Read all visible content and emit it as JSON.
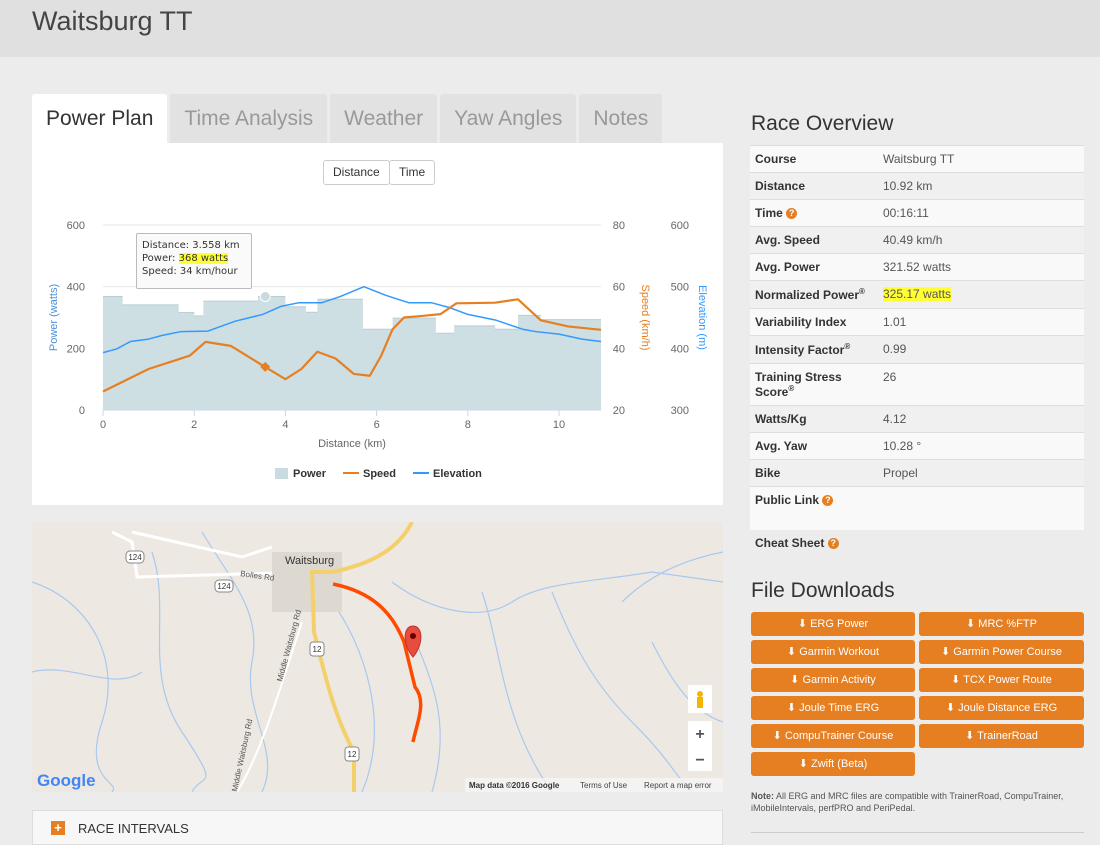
{
  "page_title": "Waitsburg TT",
  "tabs": [
    {
      "label": "Power Plan",
      "active": true
    },
    {
      "label": "Time Analysis"
    },
    {
      "label": "Weather"
    },
    {
      "label": "Yaw Angles"
    },
    {
      "label": "Notes"
    }
  ],
  "chart_toggle": {
    "distance": "Distance",
    "time": "Time"
  },
  "tooltip": {
    "distance": "Distance: 3.558 km",
    "power_label": "Power: ",
    "power_value": "368 watts",
    "speed": "Speed: 34 km/hour"
  },
  "chart_data": {
    "type": "area+line",
    "xlabel": "Distance (km)",
    "xlim": [
      0,
      10.92
    ],
    "x_ticks": [
      "0",
      "2",
      "4",
      "6",
      "8",
      "10"
    ],
    "axes": {
      "power": {
        "label": "Power (watts)",
        "ylim": [
          0,
          600
        ],
        "ticks": [
          "0",
          "200",
          "400",
          "600"
        ],
        "color": "#4a90d9"
      },
      "speed": {
        "label": "Speed (km/h)",
        "ylim": [
          20,
          80
        ],
        "ticks": [
          "20",
          "40",
          "60",
          "80"
        ],
        "color": "#e67e22"
      },
      "elevation": {
        "label": "Elevation (m)",
        "ylim": [
          300,
          600
        ],
        "ticks": [
          "300",
          "400",
          "500",
          "600"
        ],
        "color": "#3399ff"
      }
    },
    "legend": [
      "Power",
      "Speed",
      "Elevation"
    ],
    "legend_position": "bottom",
    "grid": true,
    "series": [
      {
        "name": "Power",
        "type": "step-area",
        "color": "#c9dbe0",
        "steps": [
          [
            0,
            0.43,
            368
          ],
          [
            0.43,
            1.66,
            341
          ],
          [
            1.66,
            2.0,
            316
          ],
          [
            2.0,
            2.2,
            305
          ],
          [
            2.2,
            3.4,
            353
          ],
          [
            3.4,
            4.0,
            368
          ],
          [
            4.0,
            4.45,
            335
          ],
          [
            4.45,
            4.7,
            317
          ],
          [
            4.7,
            5.7,
            359
          ],
          [
            5.7,
            6.35,
            262
          ],
          [
            6.35,
            7.3,
            298
          ],
          [
            7.3,
            7.7,
            249
          ],
          [
            7.7,
            8.6,
            273
          ],
          [
            8.6,
            9.1,
            262
          ],
          [
            9.1,
            9.6,
            307
          ],
          [
            9.6,
            10.92,
            293
          ]
        ]
      },
      {
        "name": "Speed",
        "type": "line",
        "color": "#e67e22",
        "points": [
          [
            0,
            26
          ],
          [
            1.0,
            33.3
          ],
          [
            1.9,
            37.6
          ],
          [
            2.25,
            42.1
          ],
          [
            2.8,
            40.8
          ],
          [
            3.55,
            34
          ],
          [
            4.0,
            30
          ],
          [
            4.35,
            33.3
          ],
          [
            4.7,
            38.9
          ],
          [
            5.1,
            36.7
          ],
          [
            5.5,
            31.7
          ],
          [
            5.85,
            31.1
          ],
          [
            6.1,
            37.6
          ],
          [
            6.35,
            46.2
          ],
          [
            6.6,
            50
          ],
          [
            7.0,
            50.5
          ],
          [
            7.4,
            51.1
          ],
          [
            7.75,
            54.6
          ],
          [
            8.6,
            54.8
          ],
          [
            9.1,
            55.9
          ],
          [
            9.6,
            49.1
          ],
          [
            10.2,
            47.1
          ],
          [
            10.92,
            46
          ]
        ]
      },
      {
        "name": "Elevation",
        "type": "line",
        "color": "#3399ff",
        "points": [
          [
            0,
            393
          ],
          [
            0.3,
            399
          ],
          [
            0.6,
            411
          ],
          [
            1.0,
            415
          ],
          [
            1.3,
            421
          ],
          [
            1.7,
            427
          ],
          [
            2.3,
            428
          ],
          [
            2.9,
            444
          ],
          [
            3.5,
            455
          ],
          [
            3.9,
            468
          ],
          [
            4.3,
            474
          ],
          [
            4.8,
            474
          ],
          [
            5.2,
            484
          ],
          [
            5.72,
            500
          ],
          [
            6.2,
            486
          ],
          [
            6.7,
            474
          ],
          [
            7.2,
            474
          ],
          [
            7.6,
            466
          ],
          [
            8.0,
            455
          ],
          [
            8.6,
            446
          ],
          [
            9.2,
            431
          ],
          [
            9.5,
            427
          ],
          [
            10.0,
            423
          ],
          [
            10.5,
            415
          ],
          [
            10.92,
            411
          ]
        ]
      }
    ],
    "highlight": {
      "distance": 3.558,
      "power": 368,
      "speed": 34
    }
  },
  "map": {
    "town": "Waitsburg",
    "roads": [
      "Bolles Rd",
      "Middle Waitsburg Rd",
      "Middle Waitsburg Rd"
    ],
    "shields": [
      "124",
      "124",
      "12",
      "12"
    ],
    "attribution": "Map data ©2016 Google",
    "terms": "Terms of Use",
    "report": "Report a map error",
    "logo": "Google",
    "zoom_in": "+",
    "zoom_out": "−"
  },
  "intervals": {
    "label": "RACE INTERVALS"
  },
  "overview": {
    "title": "Race Overview",
    "rows": [
      {
        "k": "Course",
        "v": "Waitsburg TT"
      },
      {
        "k": "Distance",
        "v": "10.92 km"
      },
      {
        "k": "Time",
        "v": "00:16:11",
        "help": true
      },
      {
        "k": "Avg. Speed",
        "v": "40.49 km/h"
      },
      {
        "k": "Avg. Power",
        "v": "321.52 watts"
      },
      {
        "k": "Normalized Power",
        "v": "325.17 watts",
        "reg": true,
        "highlight": true
      },
      {
        "k": "Variability Index",
        "v": "1.01"
      },
      {
        "k": "Intensity Factor",
        "v": "0.99",
        "reg": true
      },
      {
        "k": "Training Stress Score",
        "v": "26",
        "reg": true
      },
      {
        "k": "Watts/Kg",
        "v": "4.12"
      },
      {
        "k": "Avg. Yaw",
        "v": "10.28 °"
      },
      {
        "k": "Bike",
        "v": "Propel"
      },
      {
        "k": "Public Link",
        "v": "",
        "help": true
      },
      {
        "k": "Cheat Sheet",
        "v": "",
        "help": true
      }
    ]
  },
  "downloads": {
    "title": "File Downloads",
    "buttons": [
      "ERG Power",
      "MRC %FTP",
      "Garmin Workout",
      "Garmin Power Course",
      "Garmin Activity",
      "TCX Power Route",
      "Joule Time ERG",
      "Joule Distance ERG",
      "CompuTrainer Course",
      "TrainerRoad",
      "Zwift (Beta)"
    ],
    "note_label": "Note:",
    "note": " All ERG and MRC files are compatible with TrainerRoad, CompuTrainer, iMobileIntervals, perfPRO and PeriPedal."
  },
  "colors": {
    "accent": "#e67e22",
    "highlight": "#ffff33"
  }
}
